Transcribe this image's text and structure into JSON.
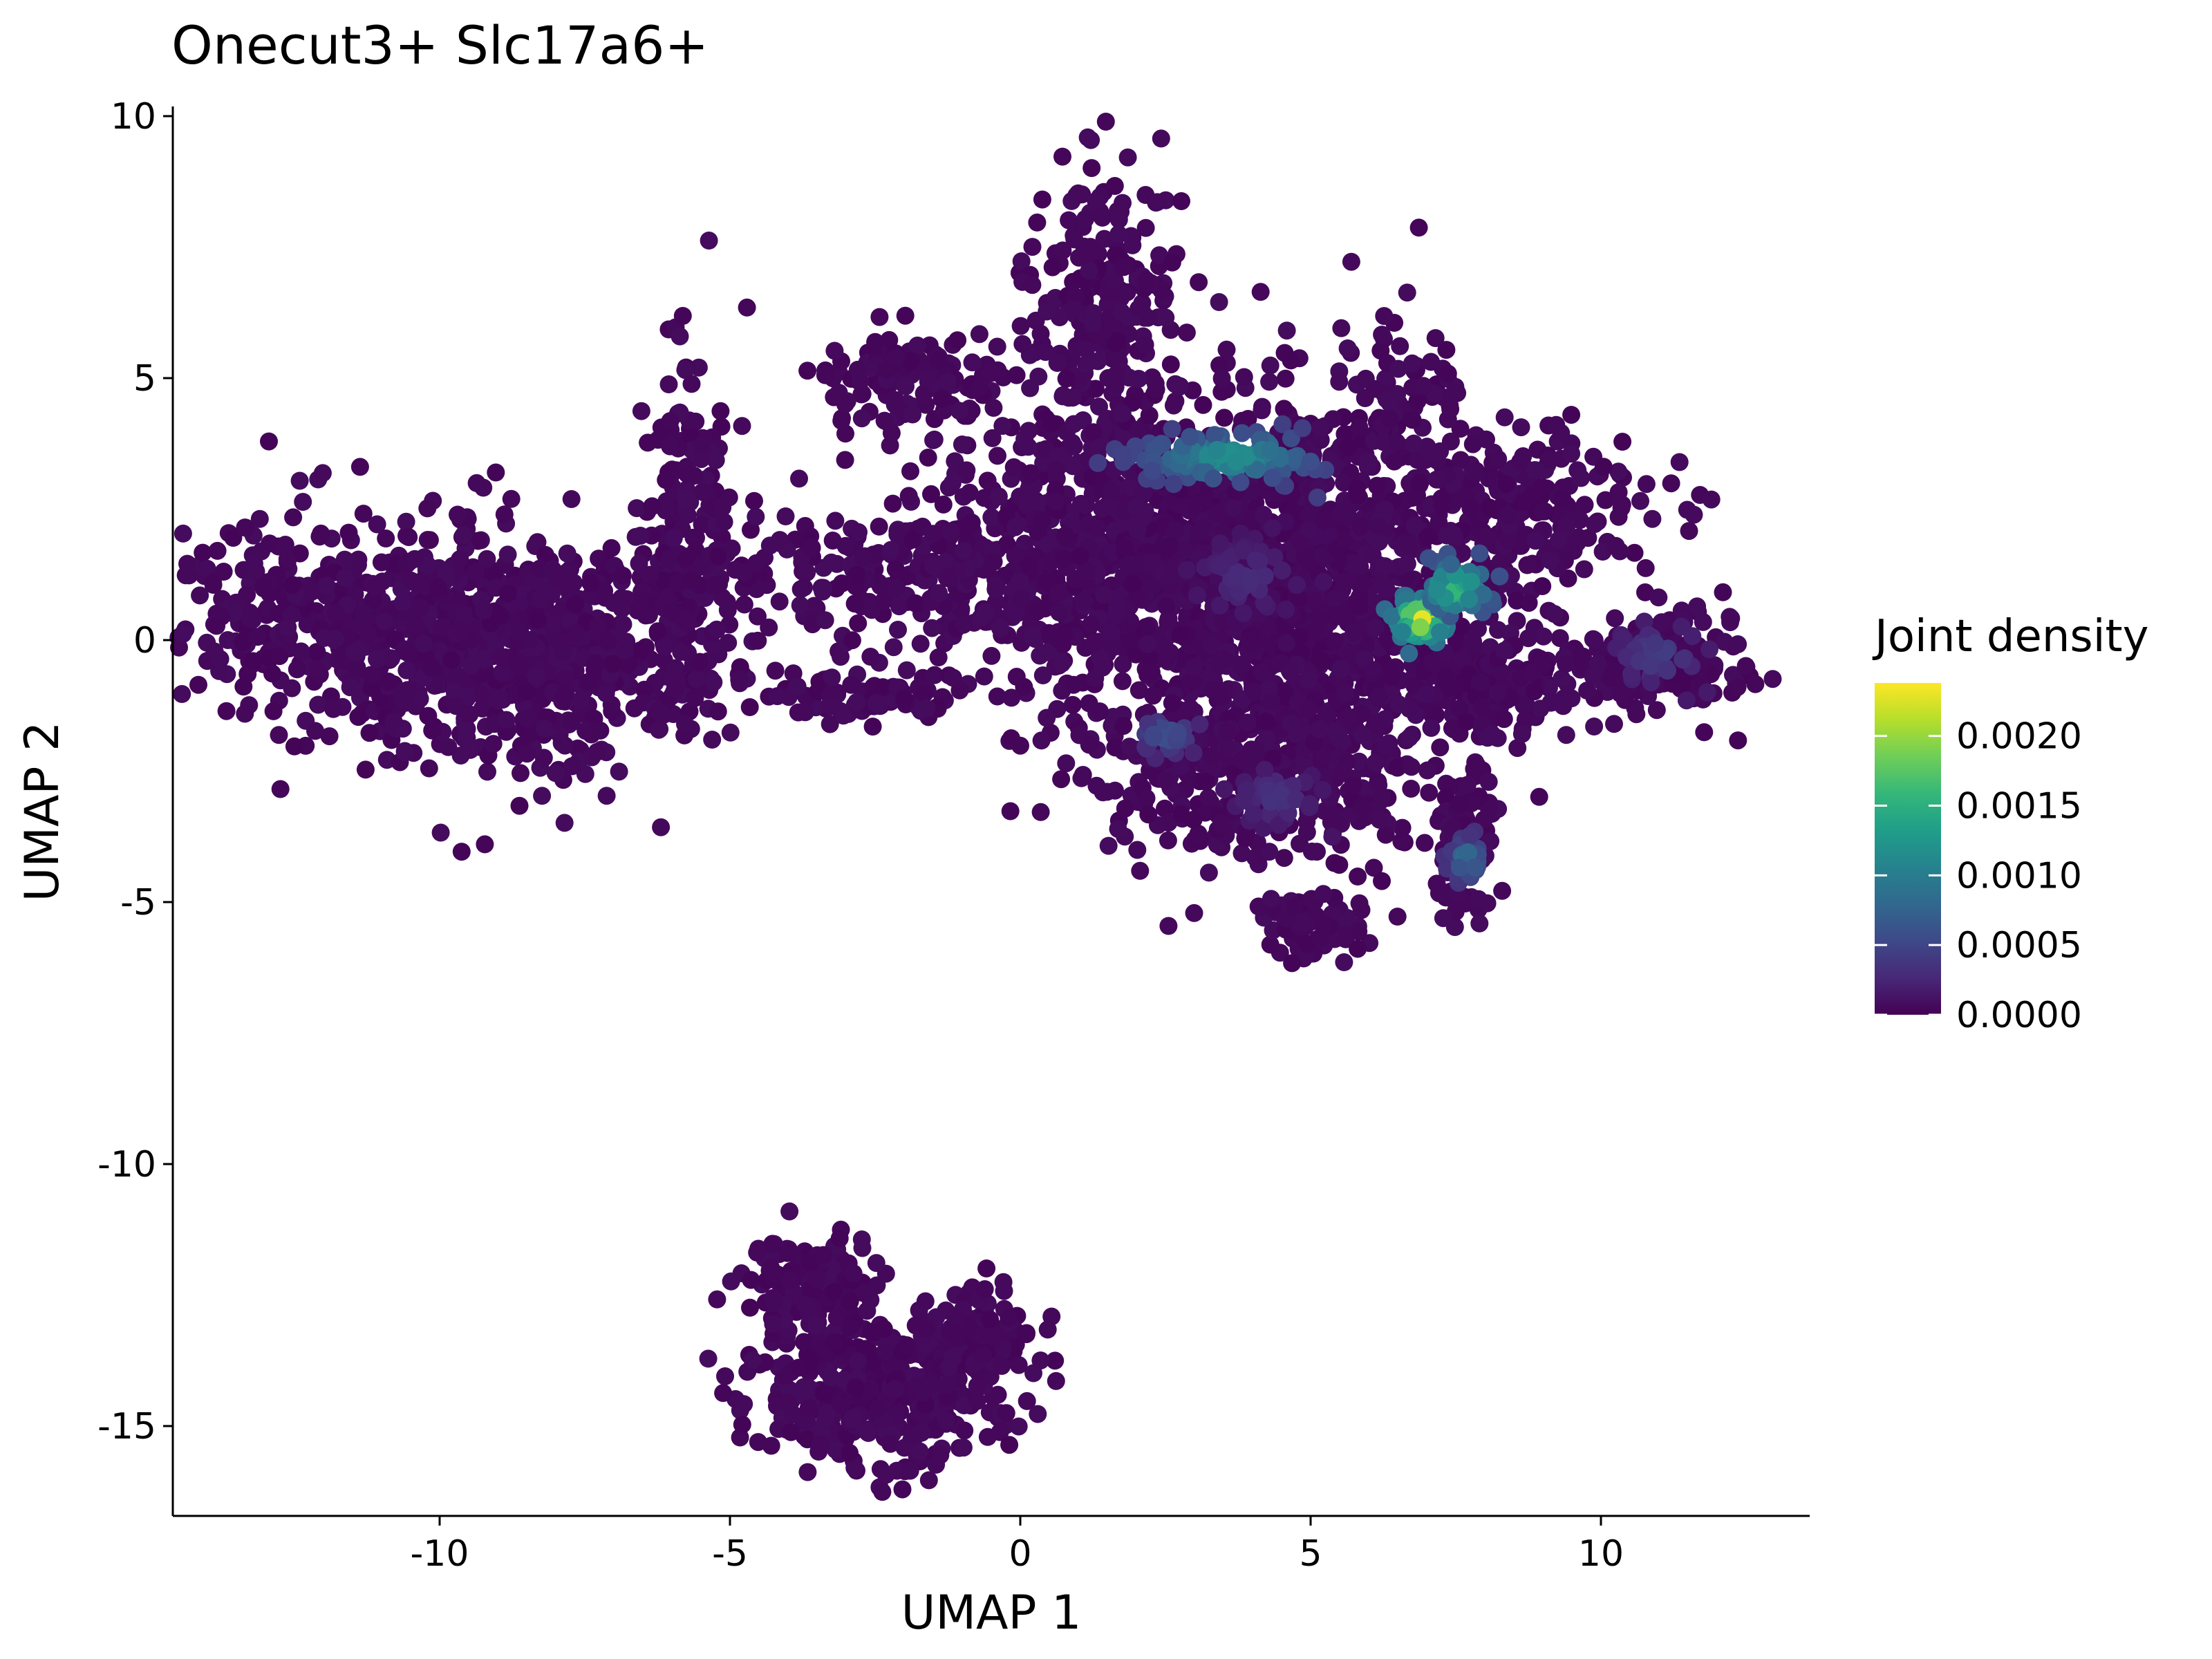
{
  "chart_data": {
    "type": "scatter",
    "title": "Onecut3+ Slc17a6+",
    "xlabel": "UMAP 1",
    "ylabel": "UMAP 2",
    "xlim": [
      -14.5,
      13.5
    ],
    "ylim": [
      -16.6,
      10.3
    ],
    "x_ticks": [
      -10,
      -5,
      0,
      5,
      10
    ],
    "x_tick_labels": [
      "-10",
      "-5",
      "0",
      "5",
      "10"
    ],
    "y_ticks": [
      10,
      5,
      0,
      -5,
      -10,
      -15
    ],
    "y_tick_labels": [
      "10",
      "5",
      "0",
      "-5",
      "-10",
      "-15"
    ],
    "grid": false,
    "legend": {
      "title": "Joint density",
      "placement": "right",
      "range": [
        0.0,
        0.00238
      ],
      "ticks": [
        0.0,
        0.0005,
        0.001,
        0.0015,
        0.002
      ],
      "tick_labels": [
        "0.0000",
        "0.0005",
        "0.0010",
        "0.0015",
        "0.0020"
      ],
      "colormap": "viridis",
      "colors": [
        "#440154",
        "#482878",
        "#3e4989",
        "#31688e",
        "#26828e",
        "#1f9e89",
        "#35b779",
        "#6ece58",
        "#b5de2b",
        "#fde725"
      ]
    },
    "background_density": 5e-05,
    "clusters": [
      {
        "name": "left-main",
        "cx": -10.2,
        "cy": 0.3,
        "sx": 2.8,
        "sy": 1.0,
        "n": 900
      },
      {
        "name": "left-arm",
        "cx": -5.7,
        "cy": 2.5,
        "sx": 0.4,
        "sy": 1.6,
        "n": 150
      },
      {
        "name": "left-mid",
        "cx": -8.3,
        "cy": -1.0,
        "sx": 1.5,
        "sy": 1.0,
        "n": 250
      },
      {
        "name": "center-core",
        "cx": 2.5,
        "cy": 1.6,
        "sx": 2.2,
        "sy": 1.6,
        "n": 1400
      },
      {
        "name": "center-top",
        "cx": 1.5,
        "cy": 6.5,
        "sx": 0.6,
        "sy": 1.4,
        "n": 220
      },
      {
        "name": "center-topleft",
        "cx": -1.8,
        "cy": 5.0,
        "sx": 0.9,
        "sy": 0.4,
        "n": 120
      },
      {
        "name": "center-right",
        "cx": 5.2,
        "cy": 0.0,
        "sx": 1.6,
        "sy": 1.2,
        "n": 550
      },
      {
        "name": "right-arm",
        "cx": 8.5,
        "cy": 2.6,
        "sx": 1.3,
        "sy": 0.7,
        "n": 220
      },
      {
        "name": "right-blob",
        "cx": 11.0,
        "cy": -0.3,
        "sx": 0.9,
        "sy": 0.5,
        "n": 160
      },
      {
        "name": "right-mid",
        "cx": 8.3,
        "cy": -0.8,
        "sx": 0.8,
        "sy": 0.4,
        "n": 150
      },
      {
        "name": "lower-center",
        "cx": 4.3,
        "cy": -2.7,
        "sx": 1.3,
        "sy": 0.9,
        "n": 330
      },
      {
        "name": "lower-right",
        "cx": 7.6,
        "cy": -3.8,
        "sx": 0.3,
        "sy": 0.7,
        "n": 90
      },
      {
        "name": "bottom-small",
        "cx": 5.0,
        "cy": -5.5,
        "sx": 0.5,
        "sy": 0.35,
        "n": 70
      },
      {
        "name": "mid-left-strip",
        "cx": -2.0,
        "cy": 1.4,
        "sx": 1.8,
        "sy": 0.5,
        "n": 170
      },
      {
        "name": "mid-left-lower",
        "cx": -2.5,
        "cy": -1.1,
        "sx": 0.9,
        "sy": 0.25,
        "n": 70
      },
      {
        "name": "top-right-spike",
        "cx": 6.7,
        "cy": 3.6,
        "sx": 0.6,
        "sy": 1.4,
        "n": 140
      },
      {
        "name": "bottom-cluster",
        "cx": -2.5,
        "cy": -14.4,
        "sx": 1.0,
        "sy": 0.7,
        "n": 380
      },
      {
        "name": "bottom-top",
        "cx": -3.6,
        "cy": -12.3,
        "sx": 0.6,
        "sy": 0.5,
        "n": 120
      },
      {
        "name": "bottom-arm",
        "cx": -0.8,
        "cy": -13.3,
        "sx": 0.6,
        "sy": 0.5,
        "n": 110
      }
    ],
    "hotspots": [
      {
        "cx": 6.9,
        "cy": 0.4,
        "sx": 0.22,
        "sy": 0.2,
        "density": 0.0023,
        "n": 90
      },
      {
        "cx": 7.5,
        "cy": 1.0,
        "sx": 0.3,
        "sy": 0.25,
        "density": 0.0016,
        "n": 70
      },
      {
        "cx": 3.6,
        "cy": 3.5,
        "sx": 0.8,
        "sy": 0.25,
        "density": 0.0012,
        "n": 120
      },
      {
        "cx": 7.7,
        "cy": -4.2,
        "sx": 0.15,
        "sy": 0.2,
        "density": 0.0009,
        "n": 40
      },
      {
        "cx": 2.5,
        "cy": -1.8,
        "sx": 0.3,
        "sy": 0.2,
        "density": 0.0006,
        "n": 40
      },
      {
        "cx": 11.0,
        "cy": -0.3,
        "sx": 0.4,
        "sy": 0.3,
        "density": 0.00045,
        "n": 40
      },
      {
        "cx": 4.4,
        "cy": -3.0,
        "sx": 0.4,
        "sy": 0.3,
        "density": 0.00035,
        "n": 40
      },
      {
        "cx": 3.9,
        "cy": 1.2,
        "sx": 0.5,
        "sy": 0.4,
        "density": 0.0003,
        "n": 50
      }
    ]
  }
}
